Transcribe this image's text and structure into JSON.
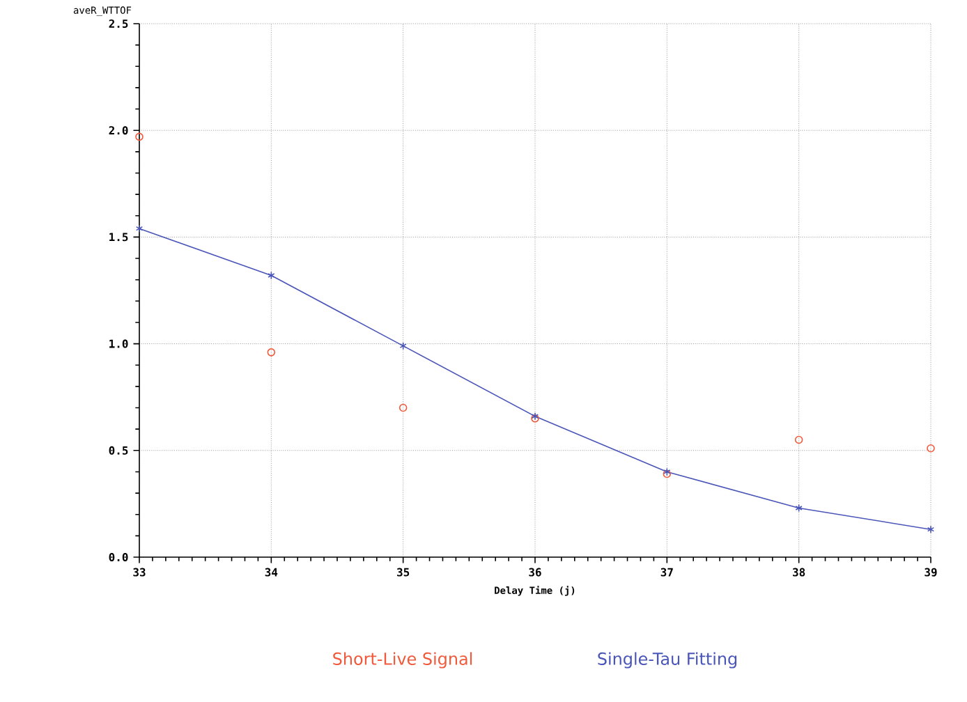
{
  "chart_data": {
    "type": "scatter",
    "ylabel": "aveR_WTTOF",
    "xlabel": "Delay Time (j)",
    "x": [
      33,
      34,
      35,
      36,
      37,
      38,
      39
    ],
    "series": [
      {
        "name": "Short-Live Signal",
        "color": "#f05a3c",
        "marker": "circle",
        "values": [
          1.97,
          0.96,
          0.7,
          0.65,
          0.39,
          0.55,
          0.51
        ]
      },
      {
        "name": "Single-Tau Fitting",
        "color": "#4a55b8",
        "type": "line",
        "marker": "cross",
        "values": [
          1.54,
          1.32,
          0.99,
          0.66,
          0.4,
          0.23,
          0.13
        ]
      }
    ],
    "xlim": [
      33,
      39
    ],
    "xticks": [
      33,
      34,
      35,
      36,
      37,
      38,
      39
    ],
    "ylim": [
      0,
      2.5
    ],
    "yticks": [
      {
        "value": 0,
        "label": "0.0"
      },
      {
        "value": 0.5,
        "label": "0.5"
      },
      {
        "value": 1,
        "label": "1.0"
      },
      {
        "value": 1.5,
        "label": "1.5"
      },
      {
        "value": 2,
        "label": "2.0"
      },
      {
        "value": 2.5,
        "label": "2.5"
      }
    ],
    "grid": true,
    "legend": "bottom"
  }
}
